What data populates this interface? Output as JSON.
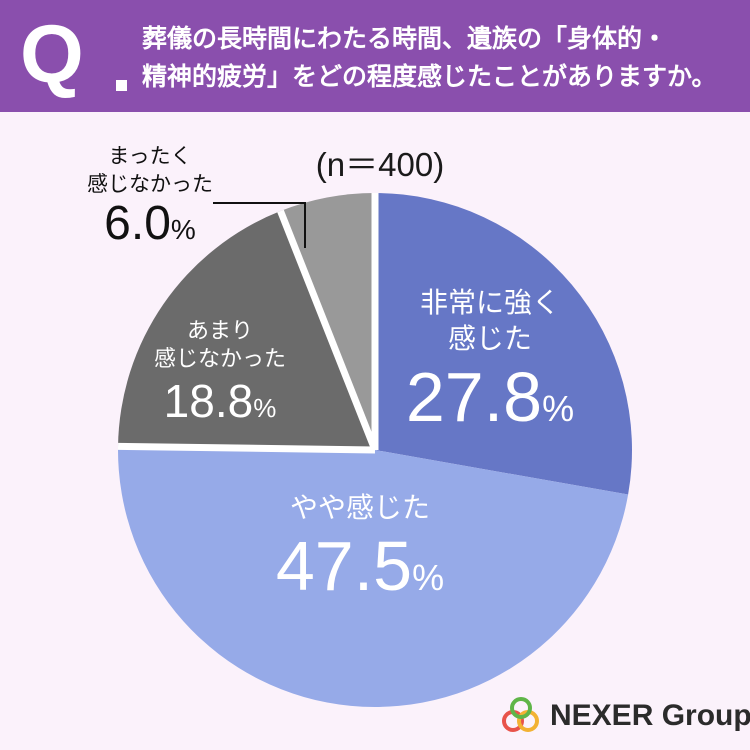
{
  "header": {
    "q_mark": "Q",
    "question_lines": [
      "葬儀の長時間にわたる時間、遺族の「身体的・",
      "精神的疲労」をどの程度感じたことがありますか。"
    ]
  },
  "chart_data": {
    "type": "pie",
    "title": "",
    "note": "(n＝400)",
    "start_angle_deg": 0,
    "direction": "clockwise",
    "slices": [
      {
        "label": "非常に強く感じた",
        "label_lines": [
          "非常に強く",
          "感じた"
        ],
        "value": 27.8,
        "value_text": "27.8",
        "unit": "%",
        "color": "#6677c6"
      },
      {
        "label": "やや感じた",
        "label_lines": [
          "やや感じた"
        ],
        "value": 47.5,
        "value_text": "47.5",
        "unit": "%",
        "color": "#96aae8"
      },
      {
        "label": "あまり感じなかった",
        "label_lines": [
          "あまり",
          "感じなかった"
        ],
        "value": 18.8,
        "value_text": "18.8",
        "unit": "%",
        "color": "#6b6b6b"
      },
      {
        "label": "まったく感じなかった",
        "label_lines": [
          "まったく",
          "感じなかった"
        ],
        "value": 6.0,
        "value_text": "6.0",
        "unit": "%",
        "color": "#999999"
      }
    ],
    "separator_color": "#ffffff"
  },
  "logo": {
    "text": "NEXER Group",
    "colors": [
      "#e8534a",
      "#f2b233",
      "#5fb548"
    ]
  }
}
